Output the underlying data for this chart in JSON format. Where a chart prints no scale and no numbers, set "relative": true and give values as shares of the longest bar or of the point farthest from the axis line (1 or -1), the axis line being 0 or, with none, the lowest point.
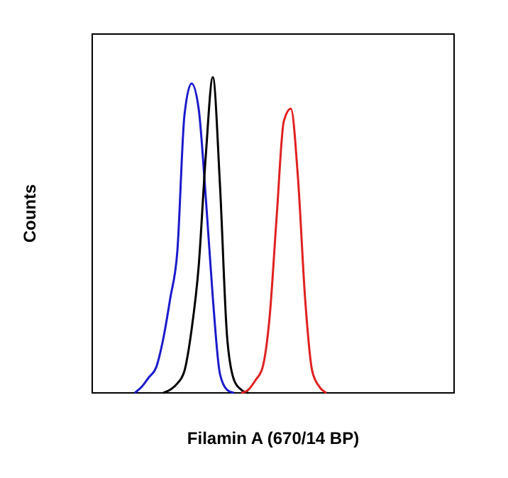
{
  "chart_data": {
    "type": "line",
    "relative": true,
    "xlabel": "Filamin A (670/14 BP)",
    "ylabel": "Counts",
    "line_style": "solid",
    "categories": [
      null,
      null,
      null,
      null,
      null,
      null,
      null,
      null,
      null,
      null,
      null,
      null,
      null,
      null,
      null,
      null,
      null,
      null,
      null,
      null,
      null,
      null,
      null,
      null,
      null,
      null,
      null,
      null,
      null,
      null,
      null,
      null,
      null,
      null,
      null,
      null,
      null,
      null,
      null,
      null,
      null,
      null,
      null,
      null,
      null,
      null,
      null,
      null,
      null,
      null,
      null,
      null
    ],
    "series": [
      {
        "color": "#1a1acc",
        "values": [
          null,
          null,
          null,
          null,
          null,
          null,
          0,
          0.02,
          0.05,
          0.08,
          0.17,
          0.3,
          0.45,
          0.88,
          0.98,
          0.9,
          0.62,
          0.3,
          0.06,
          0.01,
          0,
          null,
          null,
          null,
          null,
          null,
          null,
          null,
          null,
          null,
          null,
          null,
          null,
          null,
          null,
          null,
          null,
          null,
          null,
          null,
          null,
          null,
          null,
          null,
          null,
          null,
          null,
          null,
          null,
          null,
          null,
          null
        ]
      },
      {
        "color": "#000000",
        "values": [
          null,
          null,
          null,
          null,
          null,
          null,
          null,
          null,
          null,
          null,
          0,
          0.01,
          0.03,
          0.07,
          0.2,
          0.4,
          0.75,
          1,
          0.66,
          0.18,
          0.04,
          0.01,
          0,
          null,
          null,
          null,
          null,
          null,
          null,
          null,
          null,
          null,
          null,
          null,
          null,
          null,
          null,
          null,
          null,
          null,
          null,
          null,
          null,
          null,
          null,
          null,
          null,
          null,
          null,
          null,
          null,
          null
        ]
      },
      {
        "color": "#e02020",
        "values": [
          null,
          null,
          null,
          null,
          null,
          null,
          null,
          null,
          null,
          null,
          null,
          null,
          null,
          null,
          null,
          null,
          null,
          null,
          null,
          null,
          null,
          0,
          0.01,
          0.04,
          0.08,
          0.24,
          0.56,
          0.86,
          0.9,
          0.68,
          0.3,
          0.07,
          0.02,
          0,
          null,
          null,
          null,
          null,
          null,
          null,
          null,
          null,
          null,
          null,
          null,
          null,
          null,
          null,
          null,
          null,
          null,
          null
        ]
      }
    ]
  }
}
